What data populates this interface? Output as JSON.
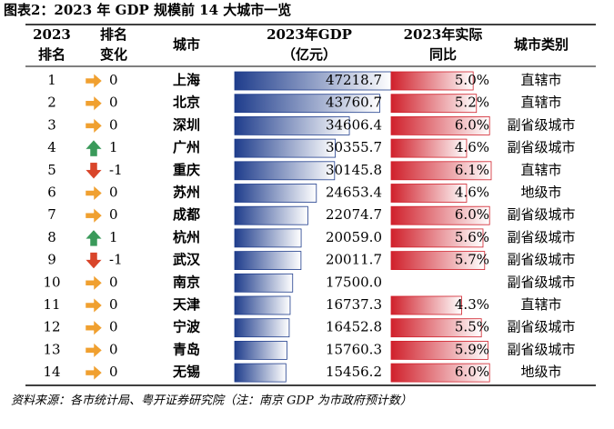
{
  "title": "图表2：2023 年 GDP 规模前 14 大城市一览",
  "table": {
    "headers": [
      [
        "2023",
        "排名"
      ],
      [
        "排名",
        "变化"
      ],
      [
        "城市"
      ],
      [
        "2023年GDP",
        "（亿元）"
      ],
      [
        "2023年实际",
        "同比"
      ],
      [
        "城市类别"
      ]
    ],
    "rows": [
      {
        "rank": 1,
        "trend": "flat",
        "change": 0,
        "city": "上海",
        "gdp": 47218.7,
        "gdp_label": "47218.7",
        "growth": 5.0,
        "growth_label": "5.0%",
        "type": "直辖市"
      },
      {
        "rank": 2,
        "trend": "flat",
        "change": 0,
        "city": "北京",
        "gdp": 43760.7,
        "gdp_label": "43760.7",
        "growth": 5.2,
        "growth_label": "5.2%",
        "type": "直辖市"
      },
      {
        "rank": 3,
        "trend": "flat",
        "change": 0,
        "city": "深圳",
        "gdp": 34606.4,
        "gdp_label": "34606.4",
        "growth": 6.0,
        "growth_label": "6.0%",
        "type": "副省级城市"
      },
      {
        "rank": 4,
        "trend": "up",
        "change": 1,
        "city": "广州",
        "gdp": 30355.7,
        "gdp_label": "30355.7",
        "growth": 4.6,
        "growth_label": "4.6%",
        "type": "副省级城市"
      },
      {
        "rank": 5,
        "trend": "down",
        "change": -1,
        "city": "重庆",
        "gdp": 30145.8,
        "gdp_label": "30145.8",
        "growth": 6.1,
        "growth_label": "6.1%",
        "type": "直辖市"
      },
      {
        "rank": 6,
        "trend": "flat",
        "change": 0,
        "city": "苏州",
        "gdp": 24653.4,
        "gdp_label": "24653.4",
        "growth": 4.6,
        "growth_label": "4.6%",
        "type": "地级市"
      },
      {
        "rank": 7,
        "trend": "flat",
        "change": 0,
        "city": "成都",
        "gdp": 22074.7,
        "gdp_label": "22074.7",
        "growth": 6.0,
        "growth_label": "6.0%",
        "type": "副省级城市"
      },
      {
        "rank": 8,
        "trend": "up",
        "change": 1,
        "city": "杭州",
        "gdp": 20059.0,
        "gdp_label": "20059.0",
        "growth": 5.6,
        "growth_label": "5.6%",
        "type": "副省级城市"
      },
      {
        "rank": 9,
        "trend": "down",
        "change": -1,
        "city": "武汉",
        "gdp": 20011.7,
        "gdp_label": "20011.7",
        "growth": 5.7,
        "growth_label": "5.7%",
        "type": "副省级城市"
      },
      {
        "rank": 10,
        "trend": "flat",
        "change": 0,
        "city": "南京",
        "gdp": 17500.0,
        "gdp_label": "17500.0",
        "growth": null,
        "growth_label": null,
        "type": "副省级城市"
      },
      {
        "rank": 11,
        "trend": "flat",
        "change": 0,
        "city": "天津",
        "gdp": 16737.3,
        "gdp_label": "16737.3",
        "growth": 4.3,
        "growth_label": "4.3%",
        "type": "直辖市"
      },
      {
        "rank": 12,
        "trend": "flat",
        "change": 0,
        "city": "宁波",
        "gdp": 16452.8,
        "gdp_label": "16452.8",
        "growth": 5.5,
        "growth_label": "5.5%",
        "type": "副省级城市"
      },
      {
        "rank": 13,
        "trend": "flat",
        "change": 0,
        "city": "青岛",
        "gdp": 15760.3,
        "gdp_label": "15760.3",
        "growth": 5.9,
        "growth_label": "5.9%",
        "type": "副省级城市"
      },
      {
        "rank": 14,
        "trend": "flat",
        "change": 0,
        "city": "无锡",
        "gdp": 15456.2,
        "gdp_label": "15456.2",
        "growth": 6.0,
        "growth_label": "6.0%",
        "type": "地级市"
      }
    ]
  },
  "source": "资料来源：各市统计局、粤开证券研究院（注：南京 GDP 为市政府预计数）"
}
